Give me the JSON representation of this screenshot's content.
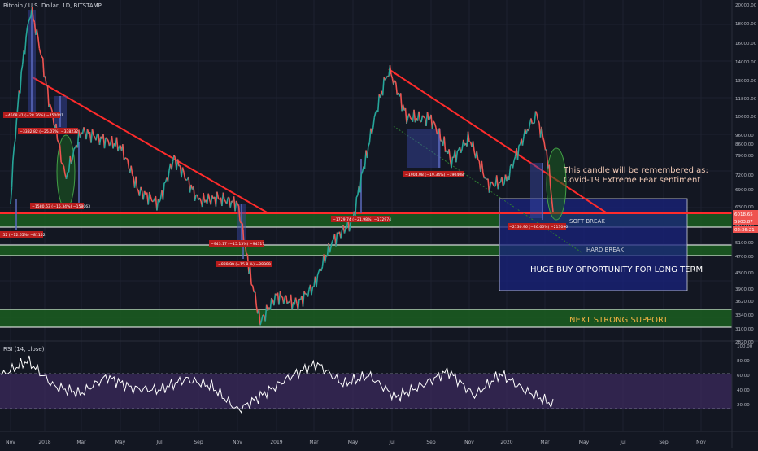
{
  "header": {
    "title": "Bitcoin / U.S. Dollar, 1D, BITSTAMP"
  },
  "rsi": {
    "label": "RSI (14, close)",
    "ticks": [
      "100.00",
      "80.00",
      "60.00",
      "40.00",
      "20.00"
    ],
    "tick_values": [
      100,
      80,
      60,
      40,
      20
    ],
    "band_upper": 70,
    "band_lower": 30
  },
  "colors": {
    "background": "#131722",
    "candle_up": "#26a69a",
    "candle_down": "#ef5350",
    "trendline": "#ff2b2b",
    "support_zone": "#1b5e20",
    "buy_box": "#1a237e",
    "rsi_line": "#ffffff",
    "rsi_band": "#3b2a5c",
    "label_badge": "#b71c1c"
  },
  "annotations": {
    "note_line1": "This candle will be remembered as:",
    "note_line2": "Covid-19 Extreme Fear sentiment",
    "soft_break": "SOFT BREAK",
    "hard_break": "HARD BREAK",
    "buy": "HUGE BUY OPPORTUNITY FOR LONG TERM",
    "support": "NEXT STRONG SUPPORT"
  },
  "measurements": [
    "−4508.41 (−28.76%) −450041",
    "−3382.82 (−25.07%) −338232",
    "−1580.63 (−15.34%) −158063",
    ".52 (−12.65%) −81152",
    "−943.17 (−15.13%) −94317",
    "−889.99 (−15.8 %) −88999",
    "−1729.74 (−21.98%) −172974",
    "−1904.08 (−19.34%) −190408",
    "−2130.96 (−26.66%) −213096"
  ],
  "price_badges": [
    "6018.65",
    "5903.87",
    "02:36:21"
  ],
  "chart_data": {
    "type": "line",
    "title": "Bitcoin / U.S. Dollar, 1D, BITSTAMP",
    "xlabel": "",
    "ylabel": "",
    "y_scale": "log",
    "ylim": [
      2820,
      20000
    ],
    "x_ticks": [
      "Nov",
      "2018",
      "Mar",
      "May",
      "Jul",
      "Sep",
      "Nov",
      "2019",
      "Mar",
      "May",
      "Jul",
      "Sep",
      "Nov",
      "2020",
      "Mar",
      "May",
      "Jul",
      "Sep",
      "Nov"
    ],
    "y_ticks": [
      "20000.00",
      "18000.00",
      "16000.00",
      "14000.00",
      "13000.00",
      "11800.00",
      "10600.00",
      "9600.00",
      "8600.00",
      "7900.00",
      "7200.00",
      "6900.00",
      "6300.00",
      "5600.00",
      "5100.00",
      "4700.00",
      "4300.00",
      "3900.00",
      "3620.00",
      "3340.00",
      "3100.00",
      "2820.00"
    ],
    "y_tick_values": [
      20000,
      18000,
      16000,
      14000,
      13000,
      11800,
      10600,
      9600,
      8600,
      7900,
      7200,
      6900,
      6300,
      5600,
      5100,
      4700,
      4300,
      3900,
      3620,
      3340,
      3100,
      2820
    ],
    "series": [
      {
        "x": [
          "Nov",
          "2018",
          "Mar",
          "May",
          "Jul",
          "Sep",
          "Nov",
          "2019",
          "Mar",
          "May",
          "Jul",
          "Sep",
          "Nov",
          "2020",
          "Mar"
        ],
        "values": [
          6300,
          13800,
          9600,
          8600,
          6400,
          6800,
          6300,
          3600,
          3850,
          7400,
          11800,
          9700,
          8800,
          7200,
          6000
        ]
      }
    ],
    "key_points": [
      {
        "x": "2018",
        "value": 19600
      },
      {
        "x": "Nov",
        "value": 3150
      },
      {
        "x": "Jul",
        "value": 13800
      },
      {
        "x": "2020",
        "value": 10400
      },
      {
        "x": "Mar",
        "value": 6000
      }
    ],
    "rsi_series": [
      60,
      80,
      45,
      35,
      58,
      42,
      40,
      55,
      45,
      12,
      35,
      58,
      76,
      48,
      60,
      30,
      46,
      66,
      32,
      62,
      38,
      20
    ]
  }
}
